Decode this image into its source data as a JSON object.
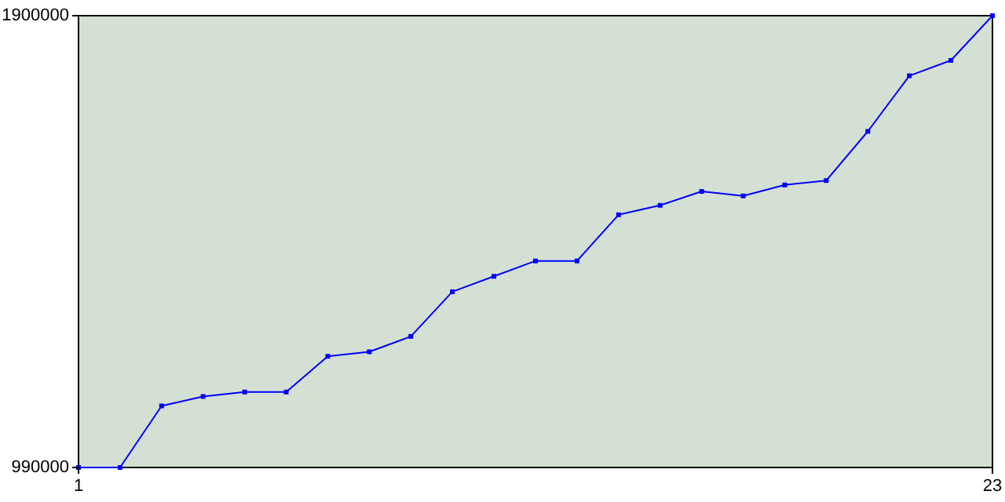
{
  "chart_data": {
    "type": "line",
    "x": [
      1,
      2,
      3,
      4,
      5,
      6,
      7,
      8,
      9,
      10,
      11,
      12,
      13,
      14,
      15,
      16,
      17,
      18,
      19,
      20,
      21,
      22,
      23
    ],
    "series": [
      {
        "color": "#0000ff",
        "values": [
          990000,
          990000,
          1114000,
          1133000,
          1142000,
          1142000,
          1214000,
          1223000,
          1254000,
          1344000,
          1375000,
          1406000,
          1406000,
          1499000,
          1518000,
          1546000,
          1537000,
          1559000,
          1568000,
          1667000,
          1779000,
          1810000,
          1900000
        ]
      }
    ],
    "xlim": [
      1,
      23
    ],
    "xticks": [
      1,
      23
    ],
    "ylim": [
      990000,
      1900000
    ],
    "yticks": [
      990000,
      1900000
    ],
    "grid": false,
    "marker": "square",
    "line_style": "solid"
  }
}
